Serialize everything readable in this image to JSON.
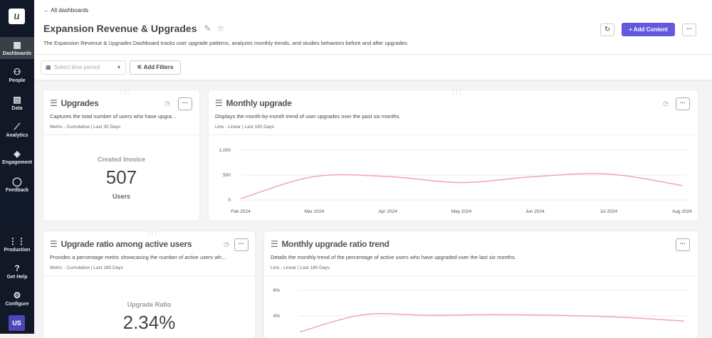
{
  "sidebar": {
    "items": [
      {
        "label": "Dashboards",
        "icon": "grid-icon",
        "glyph": "▦",
        "active": true
      },
      {
        "label": "People",
        "icon": "people-icon",
        "glyph": "⚇"
      },
      {
        "label": "Data",
        "icon": "data-icon",
        "glyph": "▤"
      },
      {
        "label": "Analytics",
        "icon": "chart-icon",
        "glyph": "⟋"
      },
      {
        "label": "Engagement",
        "icon": "layers-icon",
        "glyph": "◈"
      },
      {
        "label": "Feedback",
        "icon": "chat-icon",
        "glyph": "◯"
      },
      {
        "label": "Production",
        "icon": "apps-icon",
        "glyph": "⋮⋮"
      },
      {
        "label": "Get Help",
        "icon": "help-icon",
        "glyph": "?"
      },
      {
        "label": "Configure",
        "icon": "gear-icon",
        "glyph": "⚙"
      }
    ],
    "logo": "u",
    "avatar": "US"
  },
  "header": {
    "back": "All dashboards",
    "title": "Expansion Revenue & Upgrades",
    "description": "The Expansion Revenue & Upgrades Dashboard tracks user upgrade patterns, analyzes monthly trends, and studies behaviors before and after upgrades.",
    "add_content": "Add Content",
    "accent": "#6359e0"
  },
  "filters": {
    "time_placeholder": "Select time period",
    "add_filters": "Add Filters"
  },
  "cards": {
    "upgrades": {
      "title": "Upgrades",
      "description": "Captures the total number of users who have upgra...",
      "meta": "Metric - Cumulative | Last 30 Days",
      "label": "Created Invoice",
      "value": "507",
      "unit": "Users"
    },
    "monthly": {
      "title": "Monthly upgrade",
      "description": "Displays the month-by-month trend of user upgrades over the past six months.",
      "meta": "Line - Linear | Last 180 Days"
    },
    "ratio": {
      "title": "Upgrade ratio among active users",
      "description": "Provides a percentage metric showcasing the number of active users wh...",
      "meta": "Metric - Cumulative | Last 180 Days",
      "label": "Upgrade Ratio",
      "value": "2.34%"
    },
    "ratio_trend": {
      "title": "Monthly upgrade ratio trend",
      "description": "Details the monthly trend of the percentage of active users who have upgraded over the last six months.",
      "meta": "Line - Linear | Last 180 Days"
    }
  },
  "chart_data": [
    {
      "type": "line",
      "categories": [
        "Feb 2024",
        "Mar 2024",
        "Apr 2024",
        "May 2024",
        "Jun 2024",
        "Jul 2024",
        "Aug 2024"
      ],
      "values": [
        25,
        470,
        470,
        350,
        470,
        520,
        290
      ],
      "yticks": [
        "0",
        "500",
        "1,000"
      ],
      "ylim": [
        0,
        1000
      ],
      "grid": true,
      "color": "#f4a3b8"
    },
    {
      "type": "line",
      "yticks": [
        "4%",
        "8%"
      ],
      "values": [
        1.5,
        4.2,
        4.1,
        4.2,
        4.1,
        3.8,
        3.2
      ],
      "ylim": [
        0,
        8
      ],
      "grid": true,
      "color": "#f4a3b8"
    }
  ]
}
